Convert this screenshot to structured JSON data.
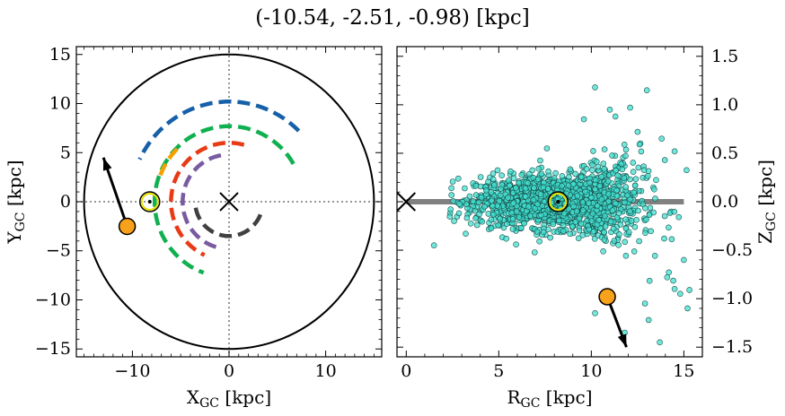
{
  "title": "(-10.54, -2.51, -0.98) [kpc]",
  "chart_data": [
    {
      "type": "scatter",
      "panel": "left",
      "xlabel": "X",
      "xlabel_sub": "GC",
      "xlabel_unit": " [kpc]",
      "ylabel": "Y",
      "ylabel_sub": "GC",
      "ylabel_unit": " [kpc]",
      "xlim": [
        -15.8,
        15.8
      ],
      "ylim": [
        -15.8,
        15.8
      ],
      "xticks": [
        -10,
        0,
        10
      ],
      "xtick_labels": [
        "−10",
        "0",
        "10"
      ],
      "yticks": [
        -15,
        -10,
        -5,
        0,
        5,
        10,
        15
      ],
      "ytick_labels": [
        "−15",
        "−10",
        "−5",
        "0",
        "5",
        "10",
        "15"
      ],
      "disk_radius": 15,
      "galactic_center": [
        0,
        0
      ],
      "sun": [
        -8.2,
        0
      ],
      "star": [
        -10.54,
        -2.51
      ],
      "star_velocity_end": [
        -13.0,
        4.5
      ],
      "spiral_arms": [
        {
          "color": "#1560a8",
          "r": 10.2,
          "theta_deg": [
            45,
            155
          ]
        },
        {
          "color": "#10b050",
          "r": 7.7,
          "theta_deg": [
            30,
            250
          ]
        },
        {
          "color": "#e83a14",
          "r": 6.0,
          "theta_deg": [
            75,
            245
          ]
        },
        {
          "color": "#7a5aa0",
          "r": 4.8,
          "theta_deg": [
            100,
            260
          ]
        },
        {
          "color": "#404040",
          "r": 3.5,
          "theta_deg": [
            190,
            340
          ]
        },
        {
          "color": "#f5a000",
          "r": 7.6,
          "theta_deg": [
            135,
            160
          ]
        }
      ],
      "colors": {
        "star": "#f8a11a",
        "sun": "#e8e000"
      }
    },
    {
      "type": "scatter",
      "panel": "right",
      "xlabel": "R",
      "xlabel_sub": "GC",
      "xlabel_unit": " [kpc]",
      "ylabel": "Z",
      "ylabel_sub": "GC",
      "ylabel_unit": " [kpc]",
      "xlim": [
        -0.5,
        16
      ],
      "ylim": [
        -1.6,
        1.6
      ],
      "xticks": [
        0,
        5,
        10,
        15
      ],
      "xtick_labels": [
        "0",
        "5",
        "10",
        "15"
      ],
      "yticks": [
        -1.5,
        -1.0,
        -0.5,
        0.0,
        0.5,
        1.0,
        1.5
      ],
      "ytick_labels": [
        "−1.5",
        "−1.0",
        "−0.5",
        "0.0",
        "0.5",
        "1.0",
        "1.5"
      ],
      "galactic_center": [
        0,
        0
      ],
      "disk_line_x": [
        0,
        15
      ],
      "sun": [
        8.2,
        0
      ],
      "star": [
        10.86,
        -0.98
      ],
      "star_velocity_end": [
        11.9,
        -1.5
      ],
      "cloud": {
        "x_center": 8.2,
        "x_spread": 2.2,
        "z_spread": 0.13,
        "count": 1800,
        "outliers": [
          [
            1.5,
            -0.45
          ],
          [
            10.2,
            1.18
          ],
          [
            13.0,
            1.15
          ],
          [
            12.1,
            0.97
          ],
          [
            11.3,
            0.88
          ],
          [
            14.5,
            -0.9
          ],
          [
            15.2,
            -1.1
          ],
          [
            13.7,
            -1.45
          ],
          [
            14.8,
            -0.95
          ],
          [
            11.8,
            -1.35
          ],
          [
            10.2,
            -1.15
          ],
          [
            13.1,
            -1.22
          ],
          [
            15.0,
            -0.6
          ],
          [
            14.1,
            -0.78
          ],
          [
            9.6,
            0.85
          ],
          [
            12.5,
            0.72
          ],
          [
            12.9,
            -1.05
          ],
          [
            14.5,
            0.52
          ],
          [
            13.8,
            0.65
          ],
          [
            7.6,
            0.55
          ],
          [
            11.0,
            0.95
          ],
          [
            15.3,
            -0.91
          ]
        ]
      },
      "colors": {
        "points": "#40e0d0",
        "star": "#f8a11a",
        "sun": "#e8e000",
        "disk": "#808080"
      }
    }
  ]
}
